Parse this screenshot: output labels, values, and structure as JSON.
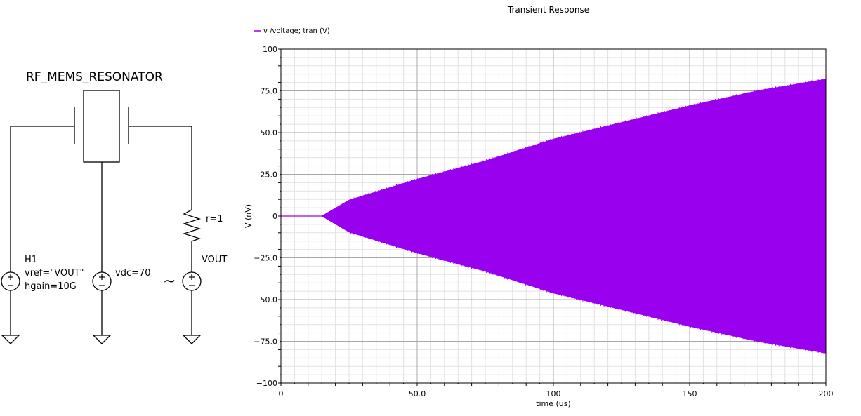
{
  "schematic": {
    "title": "RF_MEMS_RESONATOR",
    "h1_label": "H1",
    "h1_vref": "vref=\"VOUT\"",
    "h1_hgain": "hgain=10G",
    "vdc_label": "vdc=70",
    "r_label": "r=1",
    "vout_label": "VOUT",
    "ac_symbol": "~"
  },
  "chart_data": {
    "type": "line",
    "title": "Transient Response",
    "xlabel": "time (us)",
    "ylabel": "V (nV)",
    "xlim": [
      0,
      200
    ],
    "ylim": [
      -100,
      100
    ],
    "xticks": [
      0,
      50,
      100,
      150,
      200
    ],
    "xtick_labels": [
      "0",
      "50.0",
      "100",
      "150",
      "200"
    ],
    "yticks": [
      100,
      75,
      50,
      25,
      0,
      -25,
      -50,
      -75,
      -100
    ],
    "ytick_labels": [
      "100",
      "75.0",
      "50.0",
      "25.0",
      "0",
      "−25.0",
      "−50.0",
      "−75.0",
      "−100"
    ],
    "grid": true,
    "legend_position": "top-left",
    "series": [
      {
        "name": "v /voltage; tran (V)",
        "color": "#9900ee",
        "description_points": {
          "x": [
            0,
            15,
            25,
            50,
            75,
            100,
            125,
            150,
            175,
            200
          ],
          "upper": [
            0,
            0,
            9.5,
            22,
            33,
            46,
            56,
            66,
            75,
            82
          ],
          "lower": [
            0,
            0,
            -9.5,
            -22,
            -33,
            -46,
            -56,
            -66,
            -75,
            -82
          ]
        }
      }
    ]
  }
}
